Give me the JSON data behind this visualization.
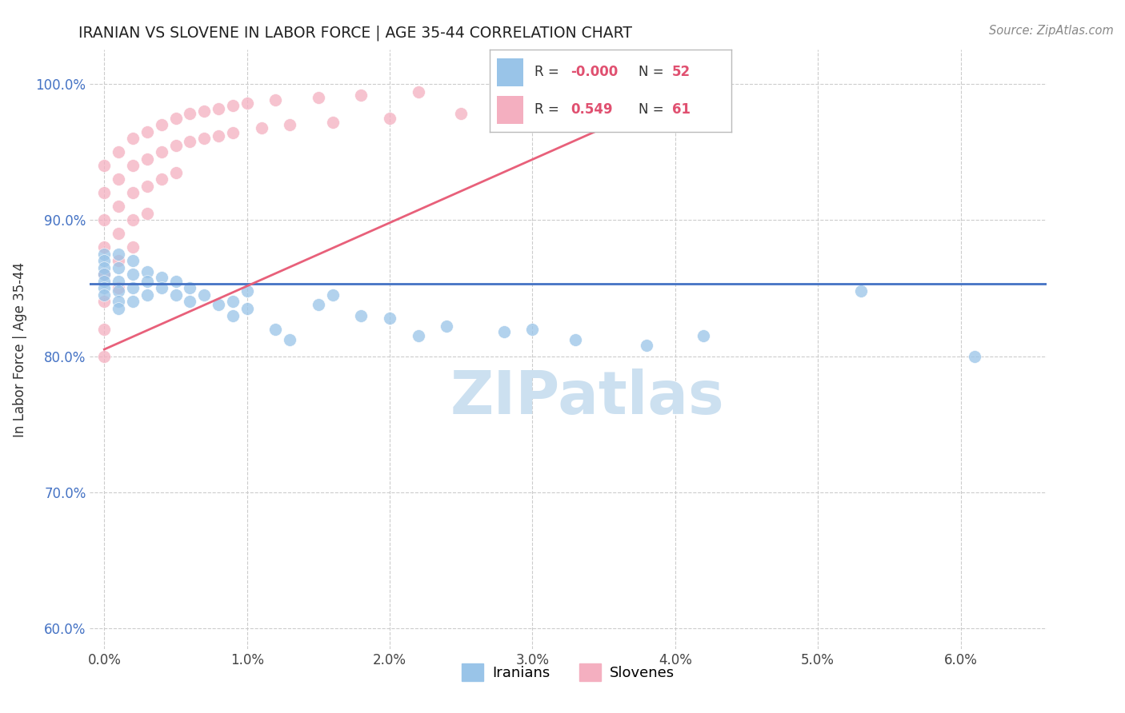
{
  "title": "IRANIAN VS SLOVENE IN LABOR FORCE | AGE 35-44 CORRELATION CHART",
  "source_text": "Source: ZipAtlas.com",
  "ylabel": "In Labor Force | Age 35-44",
  "iranians_color": "#99c4e8",
  "slovenes_color": "#f4afc0",
  "trend_iranian_color": "#4472c4",
  "trend_slovene_color": "#e8607a",
  "watermark_text": "ZIPatlas",
  "watermark_color": "#cce0f0",
  "R_iranian": "-0.000",
  "N_iranian": "52",
  "R_slovene": "0.549",
  "N_slovene": "61",
  "xmin": -0.001,
  "xmax": 0.066,
  "ymin": 0.585,
  "ymax": 1.025,
  "xticks": [
    0.0,
    0.01,
    0.02,
    0.03,
    0.04,
    0.05,
    0.06
  ],
  "xtick_labels": [
    "0.0%",
    "1.0%",
    "2.0%",
    "3.0%",
    "4.0%",
    "5.0%",
    "6.0%"
  ],
  "yticks": [
    0.6,
    0.7,
    0.8,
    0.9,
    1.0
  ],
  "ytick_labels": [
    "60.0%",
    "70.0%",
    "80.0%",
    "90.0%",
    "100.0%"
  ],
  "iranian_trend_y": 0.853,
  "slovene_trend_x0": 0.0,
  "slovene_trend_y0": 0.805,
  "slovene_trend_x1": 0.043,
  "slovene_trend_y1": 1.005,
  "iranians_x": [
    0.0,
    0.0,
    0.0,
    0.0,
    0.0,
    0.0,
    0.0,
    0.001,
    0.001,
    0.001,
    0.001,
    0.001,
    0.001,
    0.002,
    0.002,
    0.002,
    0.002,
    0.003,
    0.003,
    0.003,
    0.004,
    0.004,
    0.005,
    0.005,
    0.006,
    0.006,
    0.007,
    0.008,
    0.009,
    0.009,
    0.01,
    0.01,
    0.012,
    0.013,
    0.015,
    0.016,
    0.018,
    0.02,
    0.022,
    0.024,
    0.028,
    0.03,
    0.033,
    0.038,
    0.042,
    0.053,
    0.061
  ],
  "iranians_y": [
    0.875,
    0.87,
    0.865,
    0.86,
    0.855,
    0.85,
    0.845,
    0.875,
    0.865,
    0.855,
    0.848,
    0.84,
    0.835,
    0.87,
    0.86,
    0.85,
    0.84,
    0.862,
    0.855,
    0.845,
    0.858,
    0.85,
    0.855,
    0.845,
    0.85,
    0.84,
    0.845,
    0.838,
    0.84,
    0.83,
    0.848,
    0.835,
    0.82,
    0.812,
    0.838,
    0.845,
    0.83,
    0.828,
    0.815,
    0.822,
    0.818,
    0.82,
    0.812,
    0.808,
    0.815,
    0.848,
    0.8
  ],
  "slovenes_x": [
    0.0,
    0.0,
    0.0,
    0.0,
    0.0,
    0.0,
    0.0,
    0.0,
    0.001,
    0.001,
    0.001,
    0.001,
    0.001,
    0.001,
    0.002,
    0.002,
    0.002,
    0.002,
    0.002,
    0.003,
    0.003,
    0.003,
    0.003,
    0.004,
    0.004,
    0.004,
    0.005,
    0.005,
    0.005,
    0.006,
    0.006,
    0.007,
    0.007,
    0.008,
    0.008,
    0.009,
    0.009,
    0.01,
    0.011,
    0.012,
    0.013,
    0.015,
    0.016,
    0.018,
    0.02,
    0.022,
    0.025,
    0.028,
    0.03,
    0.033,
    0.038,
    0.042
  ],
  "slovenes_y": [
    0.94,
    0.92,
    0.9,
    0.88,
    0.86,
    0.84,
    0.82,
    0.8,
    0.95,
    0.93,
    0.91,
    0.89,
    0.87,
    0.85,
    0.96,
    0.94,
    0.92,
    0.9,
    0.88,
    0.965,
    0.945,
    0.925,
    0.905,
    0.97,
    0.95,
    0.93,
    0.975,
    0.955,
    0.935,
    0.978,
    0.958,
    0.98,
    0.96,
    0.982,
    0.962,
    0.984,
    0.964,
    0.986,
    0.968,
    0.988,
    0.97,
    0.99,
    0.972,
    0.992,
    0.975,
    0.994,
    0.978,
    0.996,
    0.98,
    0.998,
    0.999,
    1.0
  ]
}
